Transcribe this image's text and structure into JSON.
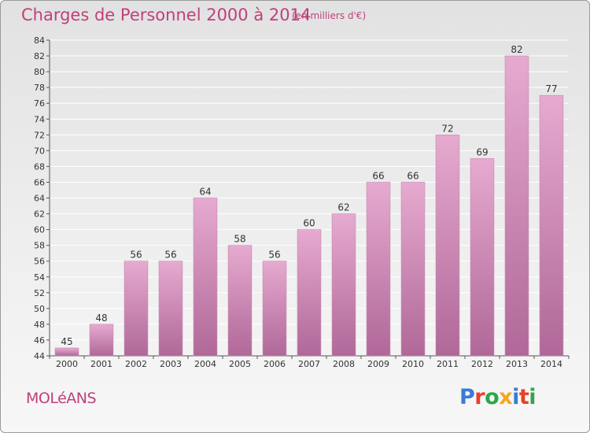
{
  "title": "Charges de Personnel 2000 à 2014",
  "subtitle": "(en milliers d'€)",
  "commune": "MOLéANS",
  "logo": {
    "text": "Proxiti",
    "letter_colors": [
      "#3a7bd5",
      "#e8402a",
      "#2aa84a",
      "#f2a81d",
      "#3a7bd5",
      "#e8402a",
      "#2aa84a"
    ]
  },
  "colors": {
    "title": "#c0407a",
    "bar_top": "#e6aad0",
    "bar_bottom": "#b06898",
    "grid": "#ffffff"
  },
  "chart_data": {
    "type": "bar",
    "title": "Charges de Personnel 2000 à 2014",
    "subtitle": "(en milliers d'€)",
    "categories": [
      "2000",
      "2001",
      "2002",
      "2003",
      "2004",
      "2005",
      "2006",
      "2007",
      "2008",
      "2009",
      "2010",
      "2011",
      "2012",
      "2013",
      "2014"
    ],
    "values": [
      45,
      48,
      56,
      56,
      64,
      58,
      56,
      60,
      62,
      66,
      66,
      72,
      69,
      82,
      77
    ],
    "ylim": [
      44,
      84
    ],
    "yticks": [
      44,
      46,
      48,
      50,
      52,
      54,
      56,
      58,
      60,
      62,
      64,
      66,
      68,
      70,
      72,
      74,
      76,
      78,
      80,
      82,
      84
    ],
    "grid": true,
    "xlabel": "",
    "ylabel": ""
  }
}
